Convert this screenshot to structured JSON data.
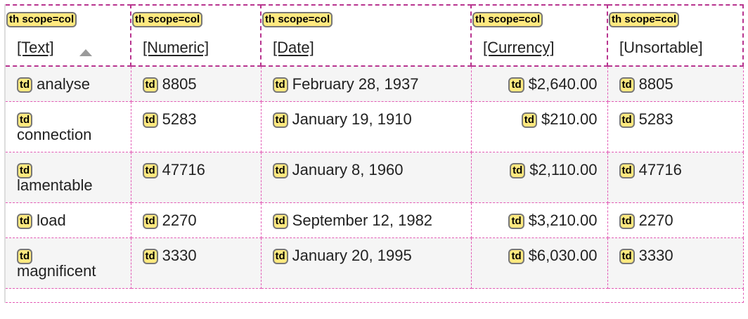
{
  "badges": {
    "th": "th scope=col",
    "td": "td"
  },
  "headers": [
    "[Text]",
    "[Numeric]",
    "[Date]",
    "[Currency]",
    "[Unsortable]"
  ],
  "sort": {
    "column": "[Text]",
    "direction": "ascending"
  },
  "rows": [
    {
      "text": "analyse",
      "numeric": "8805",
      "date": "February 28, 1937",
      "currency": "$2,640.00",
      "unsortable": "8805"
    },
    {
      "text": "connection",
      "numeric": "5283",
      "date": "January 19, 1910",
      "currency": "$210.00",
      "unsortable": "5283"
    },
    {
      "text": "lamentable",
      "numeric": "47716",
      "date": "January 8, 1960",
      "currency": "$2,110.00",
      "unsortable": "47716"
    },
    {
      "text": "load",
      "numeric": "2270",
      "date": "September 12, 1982",
      "currency": "$3,210.00",
      "unsortable": "2270"
    },
    {
      "text": "magnificent",
      "numeric": "3330",
      "date": "January 20, 1995",
      "currency": "$6,030.00",
      "unsortable": "3330"
    }
  ]
}
